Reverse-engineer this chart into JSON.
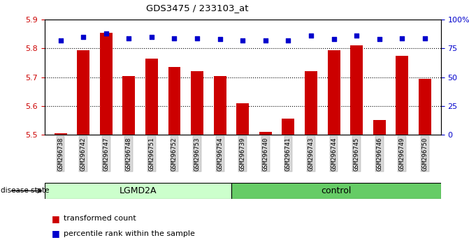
{
  "title": "GDS3475 / 233103_at",
  "samples": [
    "GSM296738",
    "GSM296742",
    "GSM296747",
    "GSM296748",
    "GSM296751",
    "GSM296752",
    "GSM296753",
    "GSM296754",
    "GSM296739",
    "GSM296740",
    "GSM296741",
    "GSM296743",
    "GSM296744",
    "GSM296745",
    "GSM296746",
    "GSM296749",
    "GSM296750"
  ],
  "bar_values": [
    5.505,
    5.795,
    5.855,
    5.705,
    5.765,
    5.735,
    5.72,
    5.705,
    5.61,
    5.51,
    5.555,
    5.72,
    5.795,
    5.81,
    5.55,
    5.775,
    5.695
  ],
  "percentile_values": [
    82,
    85,
    88,
    84,
    85,
    84,
    84,
    83,
    82,
    82,
    82,
    86,
    83,
    86,
    83,
    84,
    84
  ],
  "bar_color": "#cc0000",
  "dot_color": "#0000cc",
  "ylim_left": [
    5.5,
    5.9
  ],
  "ylim_right": [
    0,
    100
  ],
  "yticks_left": [
    5.5,
    5.6,
    5.7,
    5.8,
    5.9
  ],
  "yticks_right": [
    0,
    25,
    50,
    75,
    100
  ],
  "ytick_labels_right": [
    "0",
    "25",
    "50",
    "75",
    "100%"
  ],
  "group1_label": "LGMD2A",
  "group2_label": "control",
  "group1_count": 8,
  "group2_count": 9,
  "disease_state_label": "disease state",
  "legend_bar_label": "transformed count",
  "legend_dot_label": "percentile rank within the sample",
  "group1_color": "#ccffcc",
  "group2_color": "#66cc66",
  "background_color": "#ffffff",
  "left_axis_color": "#cc0000",
  "right_axis_color": "#0000cc",
  "grid_yticks": [
    5.6,
    5.7,
    5.8
  ]
}
